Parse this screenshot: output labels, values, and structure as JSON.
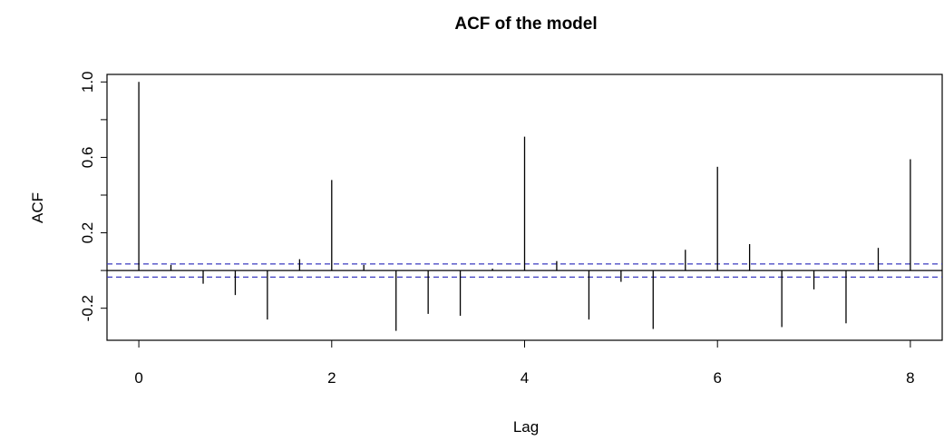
{
  "chart_data": {
    "type": "bar",
    "title": "ACF of the model",
    "xlabel": "Lag",
    "ylabel": "ACF",
    "xlim": [
      -0.33,
      8.33
    ],
    "ylim": [
      -0.37,
      1.04
    ],
    "x_ticks": [
      0,
      2,
      4,
      6,
      8
    ],
    "y_ticks": [
      -0.2,
      0.2,
      0.6,
      1.0
    ],
    "y_tick_labels": [
      "-0.2",
      "0.2",
      "0.6",
      "1.0"
    ],
    "x_tick_labels": [
      "0",
      "2",
      "4",
      "6",
      "8"
    ],
    "lags": [
      0,
      0.333,
      0.667,
      1.0,
      1.333,
      1.667,
      2.0,
      2.333,
      2.667,
      3.0,
      3.333,
      3.667,
      4.0,
      4.333,
      4.667,
      5.0,
      5.333,
      5.667,
      6.0,
      6.333,
      6.667,
      7.0,
      7.333,
      7.667,
      8.0
    ],
    "acf": [
      1.0,
      0.03,
      -0.07,
      -0.13,
      -0.26,
      0.06,
      0.48,
      0.03,
      -0.32,
      -0.23,
      -0.24,
      0.01,
      0.71,
      0.05,
      -0.26,
      -0.06,
      -0.31,
      0.11,
      0.55,
      0.14,
      -0.3,
      -0.1,
      -0.28,
      0.12,
      0.59
    ],
    "confidence_bound": 0.035,
    "colors": {
      "bars": "#000000",
      "confidence_lines": "#3b3bbf",
      "zero_line": "#000000",
      "frame": "#000000"
    }
  }
}
